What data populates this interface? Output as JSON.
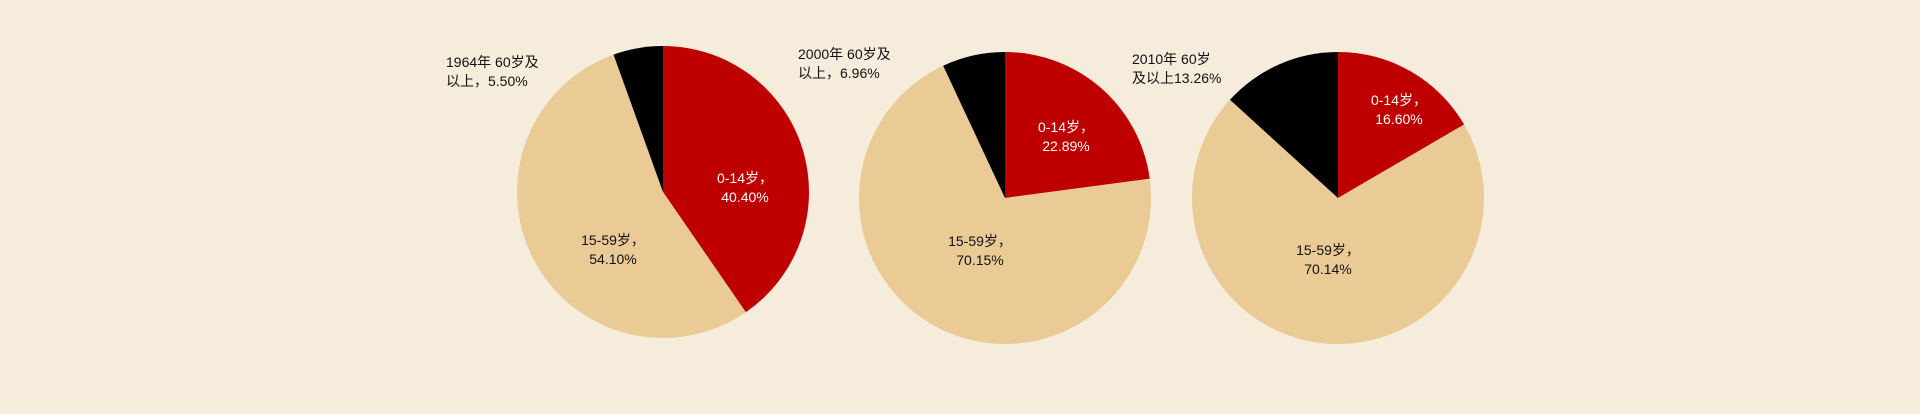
{
  "colors": {
    "background": "#f5ecdc",
    "age_0_14": "#be0000",
    "age_15_59": "#eaca95",
    "age_60_plus": "#000000",
    "label_dark": "#111111",
    "label_light": "#ffffff"
  },
  "chart_data": [
    {
      "type": "pie",
      "slices": [
        {
          "key": "age_0_14",
          "value": 40.4,
          "label_lines": [
            "0-14岁，",
            "40.40%"
          ]
        },
        {
          "key": "age_15_59",
          "value": 54.1,
          "label_lines": [
            "15-59岁，",
            "54.10%"
          ]
        },
        {
          "key": "age_60_plus",
          "value": 5.5,
          "label_lines": [
            "1964年  60岁及",
            "以上，5.50%"
          ]
        }
      ]
    },
    {
      "type": "pie",
      "slices": [
        {
          "key": "age_0_14",
          "value": 22.89,
          "label_lines": [
            "0-14岁，",
            "22.89%"
          ]
        },
        {
          "key": "age_15_59",
          "value": 70.15,
          "label_lines": [
            "15-59岁，",
            "70.15%"
          ]
        },
        {
          "key": "age_60_plus",
          "value": 6.96,
          "label_lines": [
            "2000年 60岁及",
            "以上，6.96%"
          ]
        }
      ]
    },
    {
      "type": "pie",
      "slices": [
        {
          "key": "age_0_14",
          "value": 16.6,
          "label_lines": [
            "0-14岁，",
            "16.60%"
          ]
        },
        {
          "key": "age_15_59",
          "value": 70.14,
          "label_lines": [
            "15-59岁，",
            "70.14%"
          ]
        },
        {
          "key": "age_60_plus",
          "value": 13.26,
          "label_lines": [
            "2010年 60岁",
            "及以上13.26%"
          ]
        }
      ]
    }
  ]
}
